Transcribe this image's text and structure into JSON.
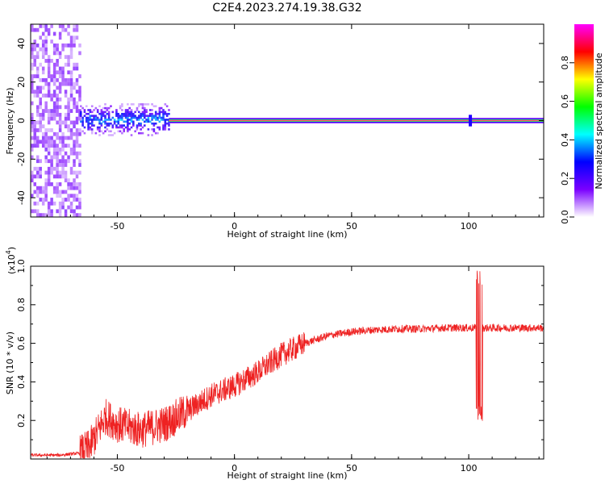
{
  "title": "C2E4.2023.274.19.38.G32",
  "chart_data": [
    {
      "type": "heatmap",
      "xlabel": "Height of straight line (km)",
      "ylabel": "Frequency (Hz)",
      "xlim": [
        -87,
        132
      ],
      "ylim": [
        -50,
        50
      ],
      "xticks": [
        -50,
        0,
        50,
        100
      ],
      "yticks": [
        -40,
        -20,
        0,
        20,
        40
      ],
      "colorbar": {
        "label": "Normalized spectral amplitude",
        "range": [
          0,
          1
        ],
        "ticks": [
          0.0,
          0.2,
          0.4,
          0.6,
          0.8
        ],
        "colors": [
          "#ffffff",
          "#7a00ff",
          "#0000ff",
          "#00ffff",
          "#00ff00",
          "#ffff00",
          "#ff0000",
          "#ff00ff"
        ]
      },
      "features": [
        {
          "description_free": true,
          "x_range": [
            -87,
            -66
          ],
          "freq_spread": 50,
          "amplitude": 0.1
        },
        {
          "x_range": [
            -66,
            -28
          ],
          "freq_spread": 5,
          "amplitude": 0.3
        },
        {
          "x_range": [
            -28,
            132
          ],
          "freq_spread": 1,
          "amplitude": 0.9
        }
      ]
    },
    {
      "type": "line",
      "xlabel": "Height of straight line (km)",
      "ylabel": "SNR (10 * v/v)",
      "multiplier_label": "(x10",
      "multiplier_exp": "4",
      "multiplier_close": ")",
      "xlim": [
        -87,
        132
      ],
      "ylim": [
        0,
        1.0
      ],
      "xticks": [
        -50,
        0,
        50,
        100
      ],
      "yticks": [
        0.2,
        0.4,
        0.6,
        0.8,
        1.0
      ],
      "ytick_labels": [
        "0.2",
        "0.4",
        "0.6",
        "0.8",
        "1.0"
      ],
      "color": "#ee2222",
      "envelope": [
        [
          -87,
          0.02
        ],
        [
          -75,
          0.02
        ],
        [
          -66,
          0.03
        ],
        [
          -62,
          0.06
        ],
        [
          -58,
          0.15
        ],
        [
          -55,
          0.22
        ],
        [
          -50,
          0.18
        ],
        [
          -40,
          0.15
        ],
        [
          -30,
          0.18
        ],
        [
          -20,
          0.25
        ],
        [
          -10,
          0.33
        ],
        [
          0,
          0.38
        ],
        [
          10,
          0.45
        ],
        [
          20,
          0.54
        ],
        [
          30,
          0.6
        ],
        [
          40,
          0.64
        ],
        [
          50,
          0.66
        ],
        [
          60,
          0.67
        ],
        [
          70,
          0.675
        ],
        [
          80,
          0.675
        ],
        [
          90,
          0.68
        ],
        [
          100,
          0.68
        ],
        [
          110,
          0.68
        ],
        [
          120,
          0.68
        ],
        [
          132,
          0.68
        ]
      ],
      "spike": {
        "x": 104.5,
        "max": 1.0,
        "min": 0.19
      }
    }
  ]
}
